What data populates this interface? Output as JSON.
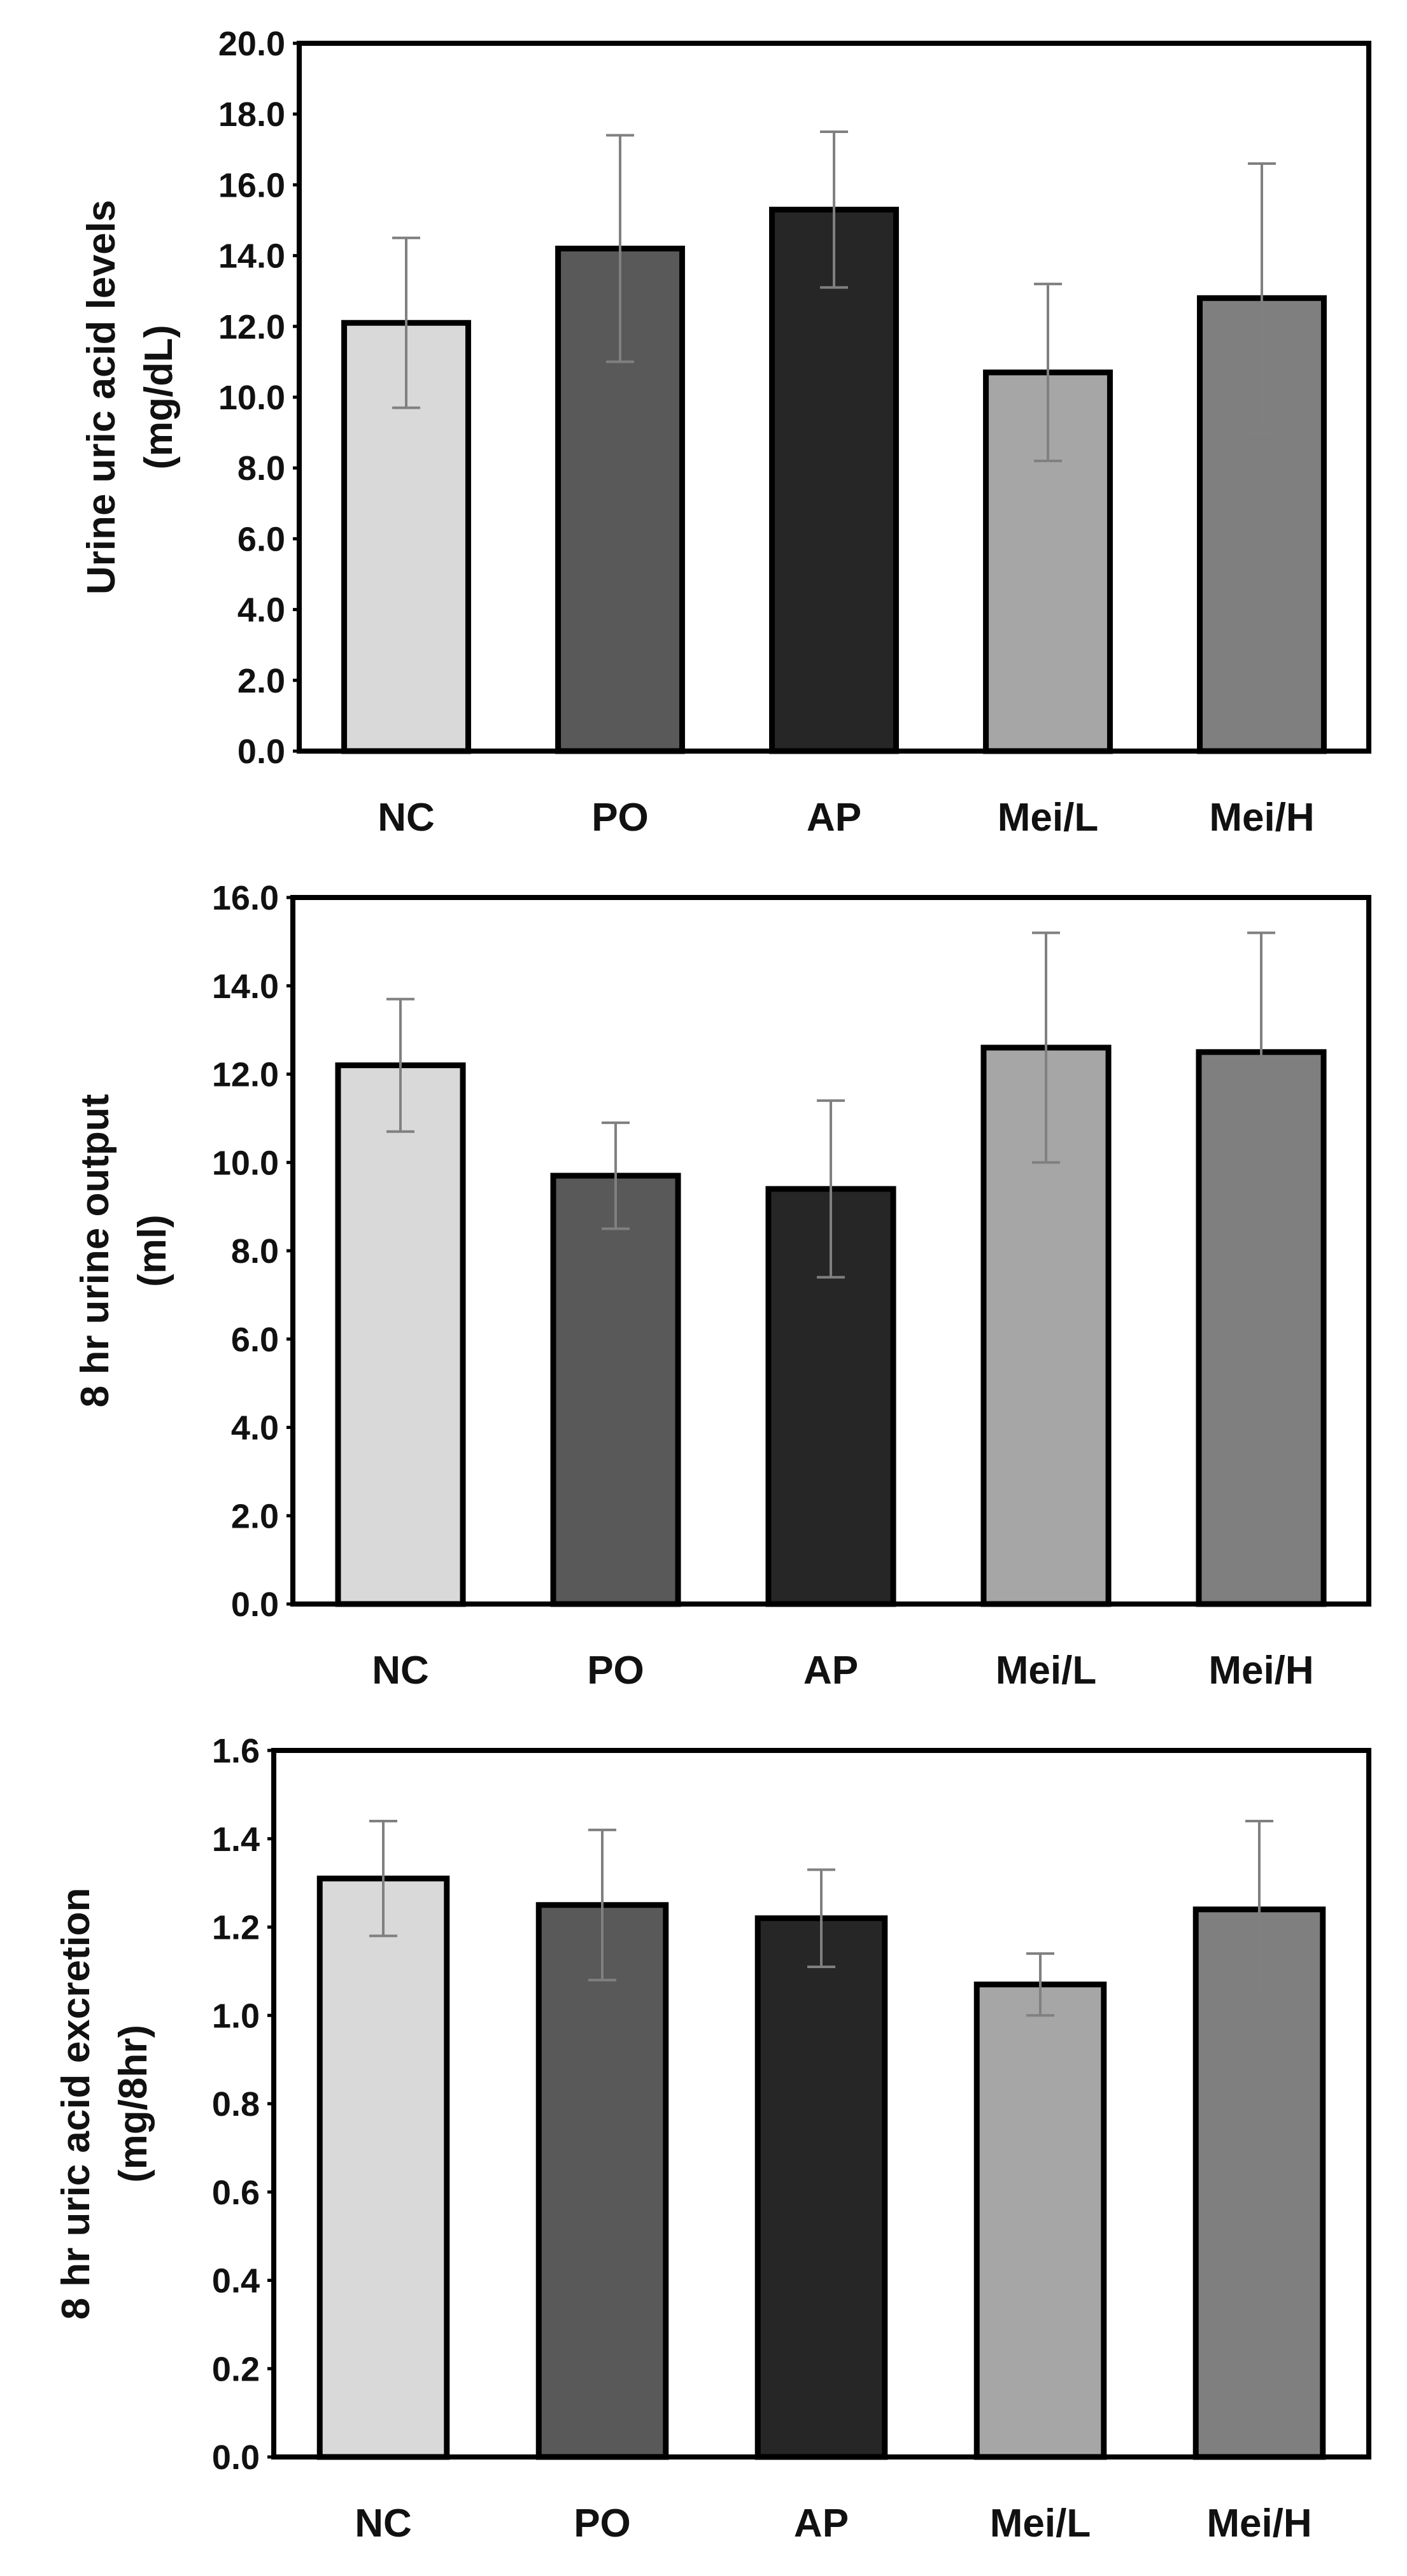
{
  "colors": {
    "NC": "#d9d9d9",
    "PO": "#595959",
    "AP": "#262626",
    "Mei/L": "#a6a6a6",
    "Mei/H": "#7f7f7f",
    "axis": "#000000",
    "error_bar": "#808080"
  },
  "chart_data": [
    {
      "type": "bar",
      "title": "",
      "categories": [
        "NC",
        "PO",
        "AP",
        "Mei/L",
        "Mei/H"
      ],
      "values": [
        12.1,
        14.2,
        15.3,
        10.7,
        12.8
      ],
      "errors": [
        2.4,
        3.2,
        2.2,
        2.5,
        3.8
      ],
      "ylabel": [
        "Urine uric acid levels",
        "(mg/dL)"
      ],
      "ylim": [
        0,
        20
      ],
      "yticks": [
        "0.0",
        "2.0",
        "4.0",
        "6.0",
        "8.0",
        "10.0",
        "12.0",
        "14.0",
        "16.0",
        "18.0",
        "20.0"
      ],
      "grid": false
    },
    {
      "type": "bar",
      "title": "",
      "categories": [
        "NC",
        "PO",
        "AP",
        "Mei/L",
        "Mei/H"
      ],
      "values": [
        12.2,
        9.7,
        9.4,
        12.6,
        12.5
      ],
      "errors": [
        1.5,
        1.2,
        2.0,
        2.6,
        2.7
      ],
      "ylabel": [
        "8 hr urine output",
        "(ml)"
      ],
      "ylim": [
        0,
        16
      ],
      "yticks": [
        "0.0",
        "2.0",
        "4.0",
        "6.0",
        "8.0",
        "10.0",
        "12.0",
        "14.0",
        "16.0"
      ],
      "grid": false
    },
    {
      "type": "bar",
      "title": "",
      "categories": [
        "NC",
        "PO",
        "AP",
        "Mei/L",
        "Mei/H"
      ],
      "values": [
        1.31,
        1.25,
        1.22,
        1.07,
        1.24
      ],
      "errors": [
        0.13,
        0.17,
        0.11,
        0.07,
        0.2
      ],
      "ylabel": [
        "8 hr uric acid excretion",
        "(mg/8hr)"
      ],
      "ylim": [
        0,
        1.6
      ],
      "yticks": [
        "0.0",
        "0.2",
        "0.4",
        "0.6",
        "0.8",
        "1.0",
        "1.2",
        "1.4",
        "1.6"
      ],
      "grid": false
    }
  ]
}
